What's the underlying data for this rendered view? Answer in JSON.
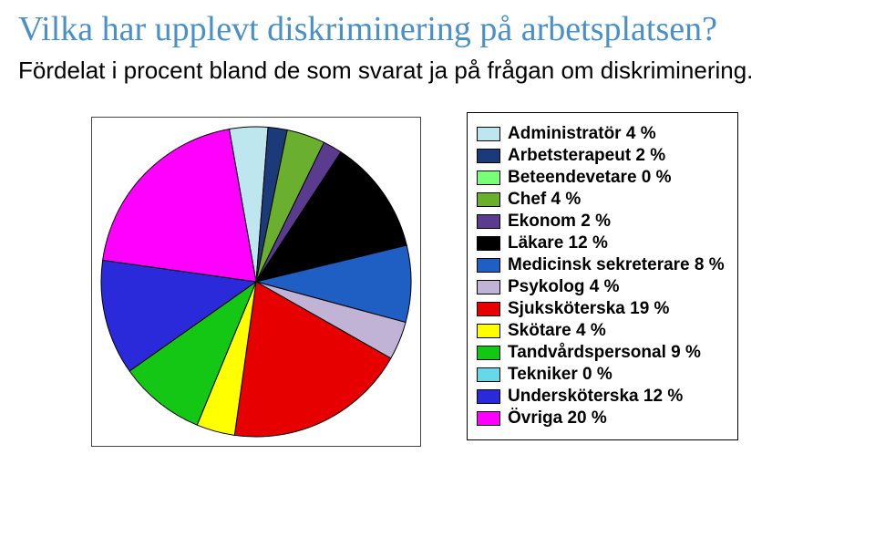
{
  "title": {
    "text": "Vilka har upplevt diskriminering på arbetsplatsen?",
    "color": "#4a90c7",
    "fontsize_pt": 38
  },
  "subtitle": {
    "text": "Fördelat i procent bland de som svarat ja på frågan om diskriminering.",
    "color": "#000000",
    "fontsize_pt": 26
  },
  "chart": {
    "type": "pie",
    "radius": 170,
    "stroke_color": "#000000",
    "stroke_width": 1,
    "background_color": "#ffffff",
    "legend_border_color": "#000000",
    "pie_frame_color": "#444444",
    "slices": [
      {
        "label": "Administratör 4 %",
        "value": 4,
        "color": "#bde6ef"
      },
      {
        "label": "Arbetsterapeut 2 %",
        "value": 2,
        "color": "#1a3a7a"
      },
      {
        "label": "Beteendevetare 0 %",
        "value": 0,
        "color": "#7aff7a"
      },
      {
        "label": "Chef 4 %",
        "value": 4,
        "color": "#6ab02e"
      },
      {
        "label": "Ekonom 2 %",
        "value": 2,
        "color": "#5a3b8e"
      },
      {
        "label": "Läkare 12 %",
        "value": 12,
        "color": "#000000"
      },
      {
        "label": "Medicinsk sekreterare 8 %",
        "value": 8,
        "color": "#1f5fc4"
      },
      {
        "label": "Psykolog 4 %",
        "value": 4,
        "color": "#c0b3d6"
      },
      {
        "label": "Sjuksköterska 19 %",
        "value": 19,
        "color": "#e60000"
      },
      {
        "label": "Skötare 4 %",
        "value": 4,
        "color": "#ffff00"
      },
      {
        "label": "Tandvårdspersonal 9 %",
        "value": 9,
        "color": "#14c714"
      },
      {
        "label": "Tekniker 0 %",
        "value": 0,
        "color": "#68d7e8"
      },
      {
        "label": "Undersköterska 12 %",
        "value": 12,
        "color": "#2a2adb"
      },
      {
        "label": "Övriga 20 %",
        "value": 20,
        "color": "#ff00ff"
      }
    ],
    "start_angle_deg": -100
  }
}
